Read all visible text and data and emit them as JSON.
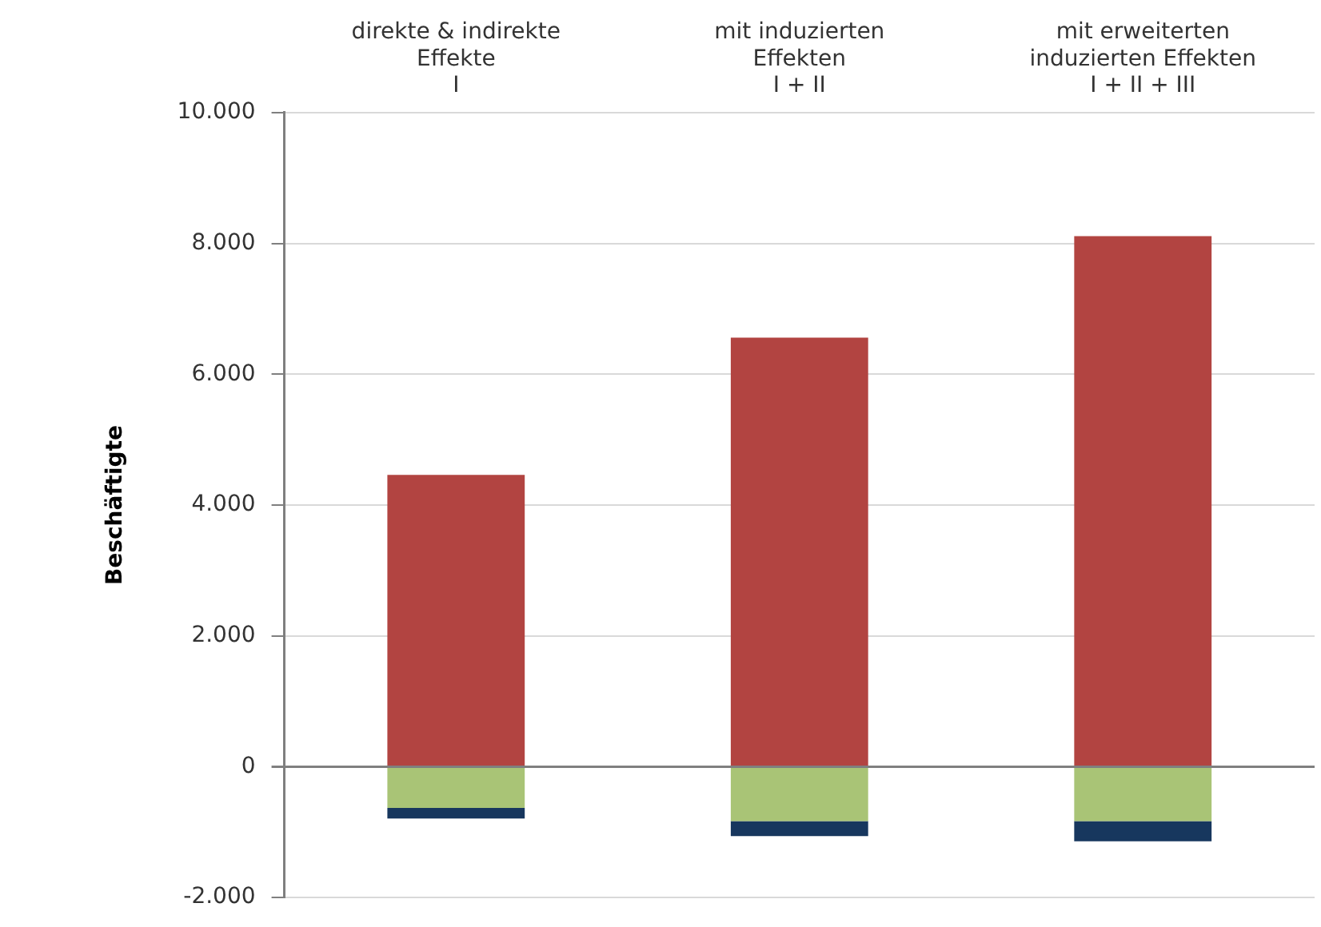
{
  "chart_data": {
    "type": "bar",
    "stacked": true,
    "ylabel": "Beschäftigte",
    "categories": [
      "direkte & indirekte\nEffekte\nI",
      "mit induzierten\nEffekten\nI + II",
      "mit erweiterten\ninduzierten Effekten\nI + II + III"
    ],
    "series": [
      {
        "color": "#b24441",
        "values": [
          4460,
          6560,
          8110
        ]
      },
      {
        "color": "#a9c476",
        "values": [
          -630,
          -830,
          -830
        ]
      },
      {
        "color": "#17375e",
        "values": [
          -160,
          -230,
          -310
        ]
      }
    ],
    "ylim": [
      -2000,
      10000
    ],
    "yticks": [
      {
        "value": -2000,
        "label": "-2.000"
      },
      {
        "value": 0,
        "label": "0"
      },
      {
        "value": 2000,
        "label": "2.000"
      },
      {
        "value": 4000,
        "label": "4.000"
      },
      {
        "value": 6000,
        "label": "6.000"
      },
      {
        "value": 8000,
        "label": "8.000"
      },
      {
        "value": 10000,
        "label": "10.000"
      }
    ],
    "grid": "y",
    "legend": false
  }
}
